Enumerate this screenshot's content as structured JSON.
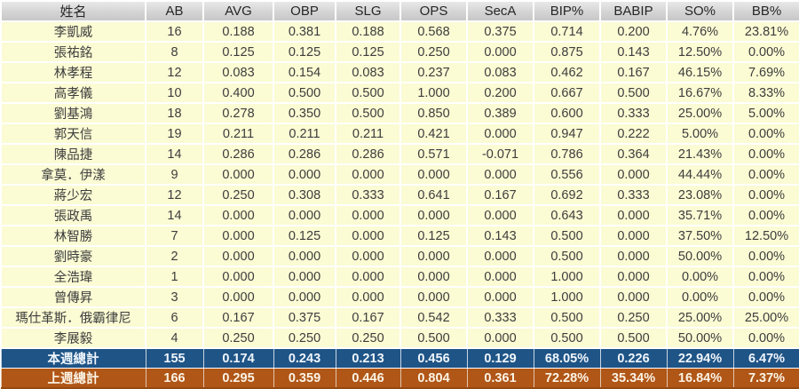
{
  "table": {
    "columns": [
      "姓名",
      "AB",
      "AVG",
      "OBP",
      "SLG",
      "OPS",
      "SecA",
      "BIP%",
      "BABIP",
      "SO%",
      "BB%"
    ],
    "players": [
      {
        "name": "李凱威",
        "stats": [
          "16",
          "0.188",
          "0.381",
          "0.188",
          "0.568",
          "0.375",
          "0.714",
          "0.200",
          "4.76%",
          "23.81%"
        ]
      },
      {
        "name": "張祐銘",
        "stats": [
          "8",
          "0.125",
          "0.125",
          "0.125",
          "0.250",
          "0.000",
          "0.875",
          "0.143",
          "12.50%",
          "0.00%"
        ]
      },
      {
        "name": "林孝程",
        "stats": [
          "12",
          "0.083",
          "0.154",
          "0.083",
          "0.237",
          "0.083",
          "0.462",
          "0.167",
          "46.15%",
          "7.69%"
        ]
      },
      {
        "name": "高孝儀",
        "stats": [
          "10",
          "0.400",
          "0.500",
          "0.500",
          "1.000",
          "0.200",
          "0.667",
          "0.500",
          "16.67%",
          "8.33%"
        ]
      },
      {
        "name": "劉基鴻",
        "stats": [
          "18",
          "0.278",
          "0.350",
          "0.500",
          "0.850",
          "0.389",
          "0.600",
          "0.333",
          "25.00%",
          "5.00%"
        ]
      },
      {
        "name": "郭天信",
        "stats": [
          "19",
          "0.211",
          "0.211",
          "0.211",
          "0.421",
          "0.000",
          "0.947",
          "0.222",
          "5.00%",
          "0.00%"
        ]
      },
      {
        "name": "陳品捷",
        "stats": [
          "14",
          "0.286",
          "0.286",
          "0.286",
          "0.571",
          "-0.071",
          "0.786",
          "0.364",
          "21.43%",
          "0.00%"
        ]
      },
      {
        "name": "拿莫．伊漾",
        "stats": [
          "9",
          "0.000",
          "0.000",
          "0.000",
          "0.000",
          "0.000",
          "0.556",
          "0.000",
          "44.44%",
          "0.00%"
        ]
      },
      {
        "name": "蔣少宏",
        "stats": [
          "12",
          "0.250",
          "0.308",
          "0.333",
          "0.641",
          "0.167",
          "0.692",
          "0.333",
          "23.08%",
          "0.00%"
        ]
      },
      {
        "name": "張政禹",
        "stats": [
          "14",
          "0.000",
          "0.000",
          "0.000",
          "0.000",
          "0.000",
          "0.643",
          "0.000",
          "35.71%",
          "0.00%"
        ]
      },
      {
        "name": "林智勝",
        "stats": [
          "7",
          "0.000",
          "0.125",
          "0.000",
          "0.125",
          "0.143",
          "0.500",
          "0.000",
          "37.50%",
          "12.50%"
        ]
      },
      {
        "name": "劉時豪",
        "stats": [
          "2",
          "0.000",
          "0.000",
          "0.000",
          "0.000",
          "0.000",
          "0.500",
          "0.000",
          "50.00%",
          "0.00%"
        ]
      },
      {
        "name": "全浩瑋",
        "stats": [
          "1",
          "0.000",
          "0.000",
          "0.000",
          "0.000",
          "0.000",
          "1.000",
          "0.000",
          "0.00%",
          "0.00%"
        ]
      },
      {
        "name": "曾傳昇",
        "stats": [
          "3",
          "0.000",
          "0.000",
          "0.000",
          "0.000",
          "0.000",
          "1.000",
          "0.000",
          "0.00%",
          "0.00%"
        ]
      },
      {
        "name": "瑪仕革斯．俄霸律尼",
        "stats": [
          "6",
          "0.167",
          "0.375",
          "0.167",
          "0.542",
          "0.333",
          "0.500",
          "0.250",
          "25.00%",
          "25.00%"
        ]
      },
      {
        "name": "李展毅",
        "stats": [
          "4",
          "0.250",
          "0.250",
          "0.250",
          "0.500",
          "0.000",
          "0.500",
          "0.500",
          "50.00%",
          "0.00%"
        ]
      }
    ],
    "summary_rows": [
      {
        "label": "本週總計",
        "style": "this-week",
        "ab_align": "center",
        "stats": [
          "155",
          "0.174",
          "0.243",
          "0.213",
          "0.456",
          "0.129",
          "68.05%",
          "0.226",
          "22.94%",
          "6.47%"
        ]
      },
      {
        "label": "上週總計",
        "style": "last-week",
        "ab_align": "left",
        "stats": [
          "166",
          "0.295",
          "0.359",
          "0.446",
          "0.804",
          "0.361",
          "72.28%",
          "35.34%",
          "16.84%",
          "7.37%"
        ]
      }
    ]
  },
  "colors": {
    "header_bg": "#d6d6d6",
    "header_top_border": "#4d4d4d",
    "data_row_bg": "#fbfbd4",
    "data_text": "#3d3d3d",
    "this_week_bg": "#1f5486",
    "last_week_bg": "#b05617",
    "summary_text": "#ffffff",
    "grid_line": "#ffffff"
  }
}
